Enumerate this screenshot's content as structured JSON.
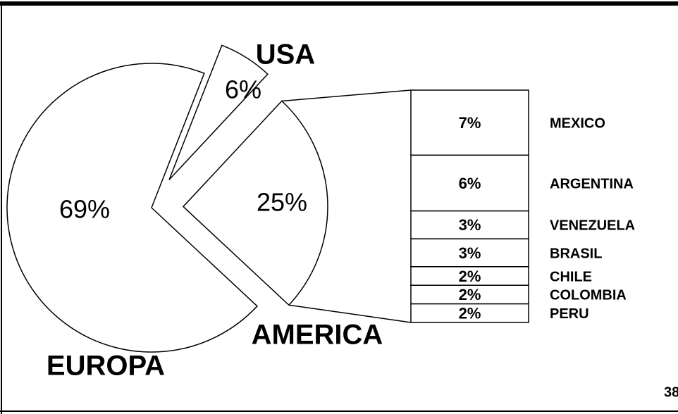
{
  "chart_data": {
    "type": "pie",
    "categories": [
      "EUROPA",
      "USA",
      "AMERICA"
    ],
    "values": [
      69,
      6,
      25
    ],
    "value_labels": [
      "69%",
      "6%",
      "25%"
    ],
    "breakdown": {
      "categories": [
        "MEXICO",
        "ARGENTINA",
        "VENEZUELA",
        "BRASIL",
        "CHILE",
        "COLOMBIA",
        "PERU"
      ],
      "values": [
        7,
        6,
        3,
        3,
        2,
        2,
        2
      ],
      "value_labels": [
        "7%",
        "6%",
        "3%",
        "3%",
        "2%",
        "2%",
        "2%"
      ]
    }
  },
  "page_number": "38"
}
